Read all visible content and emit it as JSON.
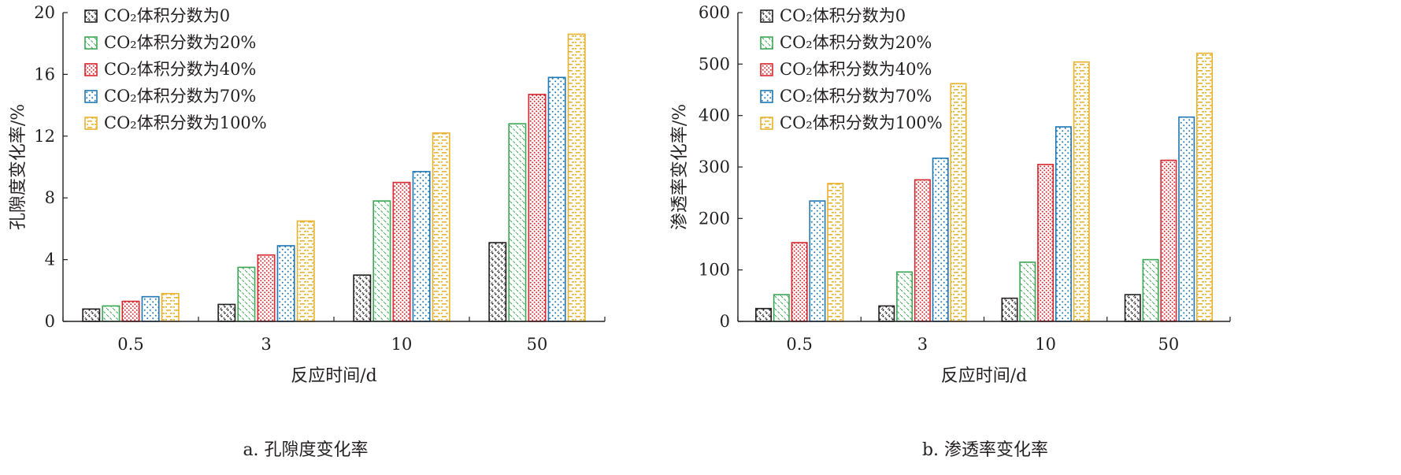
{
  "colors": {
    "axis": "#231f20",
    "series": [
      "#231f20",
      "#3aa655",
      "#d7272f",
      "#1e77b4",
      "#e8b22f"
    ]
  },
  "legend_labels": [
    "CO₂体积分数为0",
    "CO₂体积分数为20%",
    "CO₂体积分数为40%",
    "CO₂体积分数为70%",
    "CO₂体积分数为100%"
  ],
  "chart_data": [
    {
      "type": "bar",
      "caption": "a. 孔隙度变化率",
      "xlabel": "反应时间/d",
      "ylabel": "孔隙度变化率/%",
      "categories": [
        "0.5",
        "3",
        "10",
        "50"
      ],
      "ylim": [
        0,
        20
      ],
      "yticks": [
        "0",
        "4",
        "8",
        "12",
        "16",
        "20"
      ],
      "legend_position": "top-left",
      "grid": false,
      "series": [
        {
          "name": "CO₂体积分数为0",
          "values": [
            0.8,
            1.1,
            3.0,
            5.1
          ],
          "pattern": "dots-diagonal"
        },
        {
          "name": "CO₂体积分数为20%",
          "values": [
            1.0,
            3.5,
            7.8,
            12.8
          ],
          "pattern": "hatch-dashed"
        },
        {
          "name": "CO₂体积分数为40%",
          "values": [
            1.3,
            4.3,
            9.0,
            14.7
          ],
          "pattern": "dots-dense"
        },
        {
          "name": "CO₂体积分数为70%",
          "values": [
            1.6,
            4.9,
            9.7,
            15.8
          ],
          "pattern": "dots-sparse"
        },
        {
          "name": "CO₂体积分数为100%",
          "values": [
            1.8,
            6.5,
            12.2,
            18.6
          ],
          "pattern": "brick"
        }
      ]
    },
    {
      "type": "bar",
      "caption": "b. 渗透率变化率",
      "xlabel": "反应时间/d",
      "ylabel": "渗透率变化率/%",
      "categories": [
        "0.5",
        "3",
        "10",
        "50"
      ],
      "ylim": [
        0,
        600
      ],
      "yticks": [
        "0",
        "100",
        "200",
        "300",
        "400",
        "500",
        "600"
      ],
      "legend_position": "top-left",
      "grid": false,
      "series": [
        {
          "name": "CO₂体积分数为0",
          "values": [
            25,
            30,
            45,
            52
          ],
          "pattern": "dots-diagonal"
        },
        {
          "name": "CO₂体积分数为20%",
          "values": [
            52,
            96,
            115,
            120
          ],
          "pattern": "hatch-dashed"
        },
        {
          "name": "CO₂体积分数为40%",
          "values": [
            153,
            275,
            305,
            313
          ],
          "pattern": "dots-dense"
        },
        {
          "name": "CO₂体积分数为70%",
          "values": [
            234,
            317,
            378,
            397
          ],
          "pattern": "dots-sparse"
        },
        {
          "name": "CO₂体积分数为100%",
          "values": [
            268,
            462,
            504,
            521
          ],
          "pattern": "brick"
        }
      ]
    }
  ]
}
